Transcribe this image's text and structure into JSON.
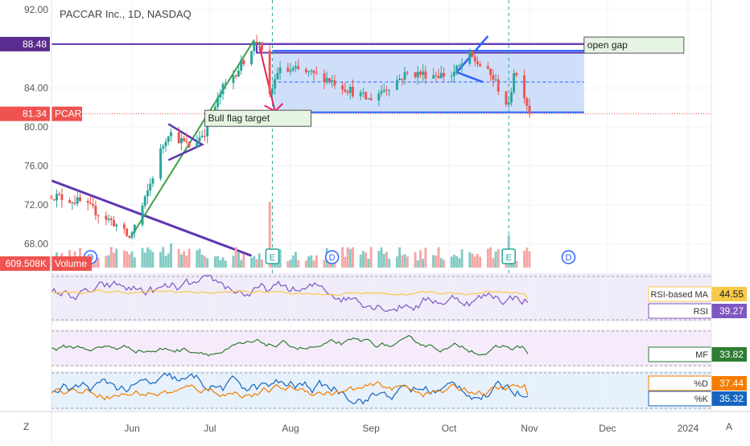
{
  "header": {
    "title": "PACCAR Inc., 1D, NASDAQ"
  },
  "price_axis": {
    "ticks": [
      "92.00",
      "84.00",
      "80.00",
      "76.00",
      "72.00",
      "68.00"
    ],
    "badges": [
      {
        "text": "88.48",
        "value": 88.48,
        "color": "#5b2c8f"
      },
      {
        "text": "81.34",
        "value": 81.34,
        "color": "#ef5350"
      }
    ]
  },
  "series_labels": {
    "symbol": "PCAR",
    "volume_value": "609.508K",
    "volume_label": "Volume"
  },
  "time_axis": [
    "Jun",
    "Jul",
    "Aug",
    "Sep",
    "Oct",
    "Nov",
    "Dec",
    "2024"
  ],
  "corner": {
    "left": "Z",
    "right": "A"
  },
  "annotations": {
    "bull_flag": "Bull flag target",
    "open_gap": "open gap",
    "earnings_marker": "E",
    "dividend_marker": "D"
  },
  "indicators": {
    "rsi_ma": {
      "label": "RSI-based MA",
      "value": "44.55",
      "color": "#f7c948"
    },
    "rsi": {
      "label": "RSI",
      "value": "39.27",
      "color": "#7e57c2"
    },
    "mf": {
      "label": "MF",
      "value": "33.82",
      "color": "#2e7d32"
    },
    "stoch_d": {
      "label": "%D",
      "value": "37.44",
      "color": "#f57c00"
    },
    "stoch_k": {
      "label": "%K",
      "value": "35.32",
      "color": "#1565c0"
    }
  },
  "colors": {
    "up": "#26a69a",
    "down": "#ef5350",
    "box": "#bbd2f7",
    "line": "#2962ff",
    "trend": "#5e35b1",
    "flag": "#43a047"
  },
  "chart_data": {
    "type": "candlestick",
    "title": "PACCAR Inc., 1D, NASDAQ",
    "x_range": [
      "2023-05-01",
      "2024-01-10"
    ],
    "y_range": [
      66,
      93
    ],
    "ohlc_path": [
      [
        "2023-05-01",
        73.0
      ],
      [
        "2023-05-12",
        72.3
      ],
      [
        "2023-05-25",
        70.2
      ],
      [
        "2023-05-31",
        68.6
      ],
      [
        "2023-06-06",
        72.5
      ],
      [
        "2023-06-12",
        77.5
      ],
      [
        "2023-06-15",
        79.5
      ],
      [
        "2023-06-23",
        78.0
      ],
      [
        "2023-06-29",
        79.5
      ],
      [
        "2023-07-06",
        84.0
      ],
      [
        "2023-07-12",
        86.0
      ],
      [
        "2023-07-18",
        88.5
      ],
      [
        "2023-07-20",
        88.9
      ],
      [
        "2023-07-24",
        83.0
      ],
      [
        "2023-07-27",
        85.7
      ],
      [
        "2023-08-03",
        85.8
      ],
      [
        "2023-08-15",
        85.0
      ],
      [
        "2023-08-31",
        82.8
      ],
      [
        "2023-09-15",
        85.5
      ],
      [
        "2023-10-02",
        85.3
      ],
      [
        "2023-10-09",
        87.3
      ],
      [
        "2023-10-18",
        85.0
      ],
      [
        "2023-10-24",
        82.0
      ],
      [
        "2023-10-26",
        85.8
      ],
      [
        "2023-10-30",
        83.4
      ],
      [
        "2023-11-01",
        81.34
      ]
    ],
    "volume_last": "609.508K",
    "annotations": {
      "range_box": {
        "from": "2023-07-25",
        "to": "2023-11-22",
        "low": 81.5,
        "high": 87.8,
        "mid": 84.6
      },
      "open_gap": {
        "from": "2023-07-19",
        "to": "2023-11-27",
        "low": 87.6,
        "high": 88.5
      },
      "resistance_88_48": {
        "from": "2023-05-01",
        "to": "2023-11-27",
        "value": 88.48
      },
      "down_trendline": [
        [
          "2023-05-01",
          74.5
        ],
        [
          "2023-07-17",
          66.8
        ]
      ],
      "bull_flag_channel": [
        [
          "2023-06-01",
          68.9
        ],
        [
          "2023-07-18",
          88.9
        ]
      ],
      "earnings_dates": [
        "2023-07-25",
        "2023-10-24"
      ],
      "dividend_dates": [
        "2023-05-16",
        "2023-08-17",
        "2023-11-16"
      ]
    },
    "indicators": {
      "rsi": 39.27,
      "rsi_based_ma": 44.55,
      "money_flow": 33.82,
      "stoch_k": 35.32,
      "stoch_d": 37.44
    }
  }
}
